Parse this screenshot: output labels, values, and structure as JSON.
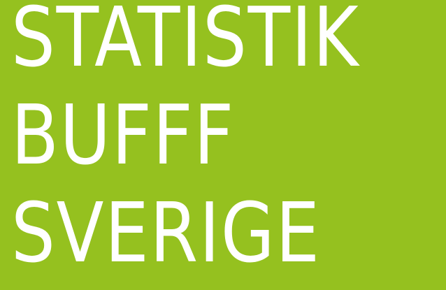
{
  "lines": [
    "STATISTIK",
    "BUFFF",
    "SVERIGE"
  ]
}
